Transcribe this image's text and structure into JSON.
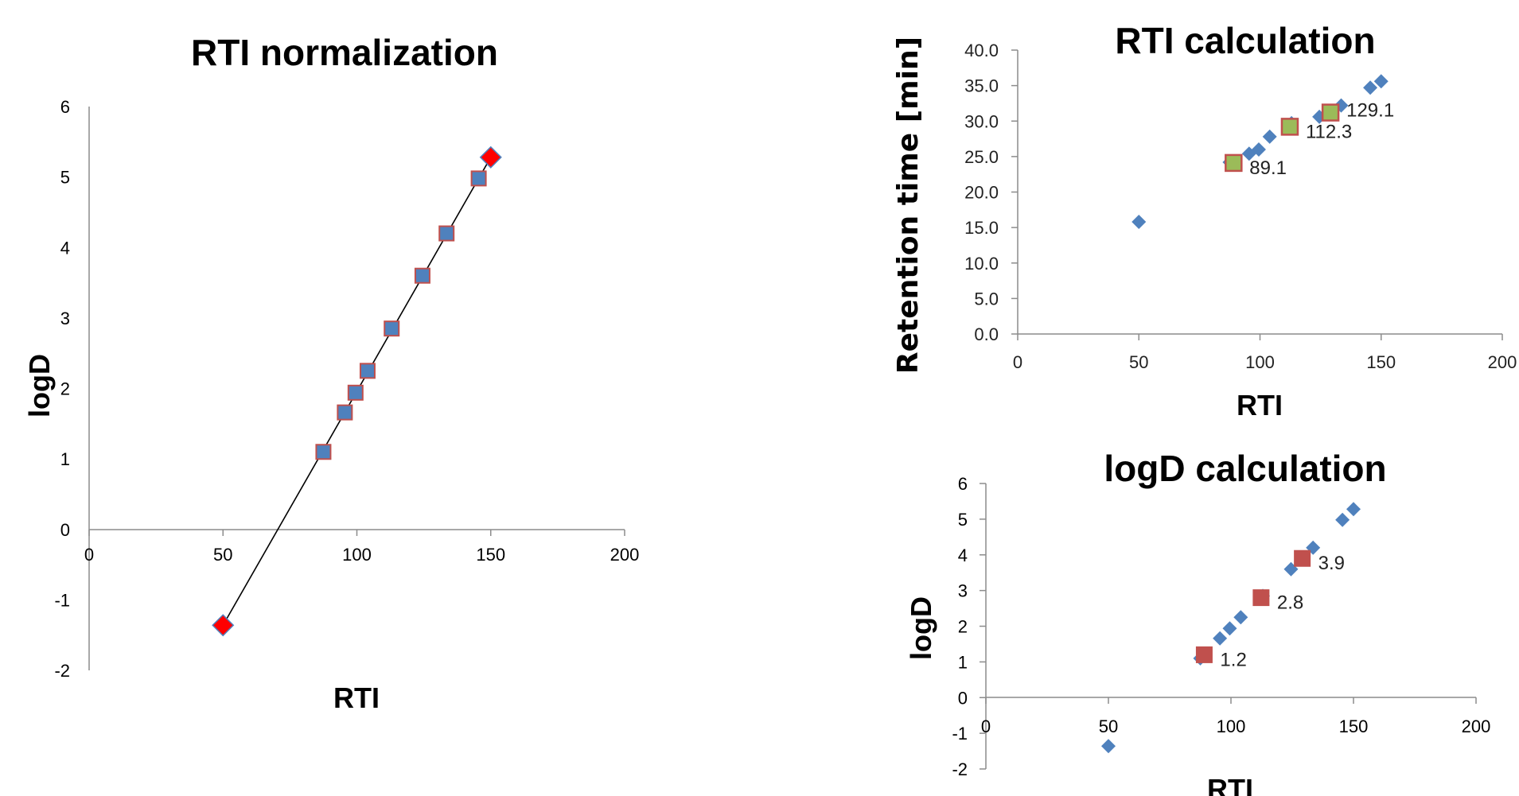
{
  "colors": {
    "title": "#F2A81D",
    "axis": "#8C8C8C",
    "blue_marker": "#4F81BD",
    "red_marker": "#FF0000",
    "square_fill": "#4F81BD",
    "square_stroke": "#C0504D",
    "green_fill": "#9BBB59",
    "green_stroke": "#C0504D",
    "dark_red_square": "#C0504D",
    "fit_line": "#000000"
  },
  "chart_data": [
    {
      "id": "rti-normalization",
      "type": "scatter",
      "title": "RTI normalization",
      "xlabel": "RTI",
      "ylabel": "logD",
      "xlim": [
        0,
        200
      ],
      "ylim": [
        -2,
        6
      ],
      "xticks": [
        0,
        50,
        100,
        150,
        200
      ],
      "yticks": [
        -2,
        -1,
        0,
        1,
        2,
        3,
        4,
        5,
        6
      ],
      "grid": false,
      "legend": "none",
      "series": [
        {
          "marker": "square",
          "x": [
            87.5,
            95.5,
            99.5,
            104,
            113,
            124.5,
            133.5,
            145.5
          ],
          "y": [
            1.1,
            1.66,
            1.94,
            2.25,
            2.85,
            3.6,
            4.2,
            4.98
          ]
        },
        {
          "marker": "diamond",
          "x": [
            50,
            150
          ],
          "y": [
            -1.36,
            5.28
          ]
        }
      ],
      "trendline": {
        "x": [
          50,
          150
        ],
        "y": [
          -1.36,
          5.28
        ]
      }
    },
    {
      "id": "rti-calculation",
      "type": "scatter",
      "title": "RTI calculation",
      "xlabel": "RTI",
      "ylabel": "Retention time [min]",
      "xlim": [
        0,
        200
      ],
      "ylim": [
        0,
        40
      ],
      "xticks": [
        0,
        50,
        100,
        150,
        200
      ],
      "yticks": [
        "0.0",
        "5.0",
        "10.0",
        "15.0",
        "20.0",
        "25.0",
        "30.0",
        "35.0",
        "40.0"
      ],
      "grid": false,
      "legend": "none",
      "series": [
        {
          "marker": "diamond",
          "x": [
            50,
            87.5,
            95.5,
            99.5,
            104,
            113,
            124.5,
            133.5,
            145.5,
            150
          ],
          "y": [
            15.8,
            24.2,
            25.4,
            26.0,
            27.8,
            29.7,
            30.6,
            32.2,
            34.7,
            35.6
          ]
        },
        {
          "marker": "square",
          "x": [
            89.1,
            112.3,
            129.1
          ],
          "y": [
            24.1,
            29.2,
            31.2
          ],
          "labels": [
            "89.1",
            "112.3",
            "129.1"
          ]
        }
      ]
    },
    {
      "id": "logd-calculation",
      "type": "scatter",
      "title": "logD calculation",
      "xlabel": "RTI",
      "ylabel": "logD",
      "xlim": [
        0,
        200
      ],
      "ylim": [
        -2,
        6
      ],
      "xticks": [
        0,
        50,
        100,
        150,
        200
      ],
      "yticks": [
        -2,
        -1,
        0,
        1,
        2,
        3,
        4,
        5,
        6
      ],
      "grid": false,
      "legend": "none",
      "series": [
        {
          "marker": "diamond",
          "x": [
            50,
            87.5,
            95.5,
            99.5,
            104,
            113,
            124.5,
            133.5,
            145.5,
            150
          ],
          "y": [
            -1.36,
            1.1,
            1.66,
            1.94,
            2.25,
            2.85,
            3.6,
            4.2,
            4.98,
            5.28
          ]
        },
        {
          "marker": "square",
          "x": [
            89.1,
            112.3,
            129.1
          ],
          "y": [
            1.2,
            2.8,
            3.9
          ],
          "labels": [
            "1.2",
            "2.8",
            "3.9"
          ]
        }
      ]
    }
  ]
}
